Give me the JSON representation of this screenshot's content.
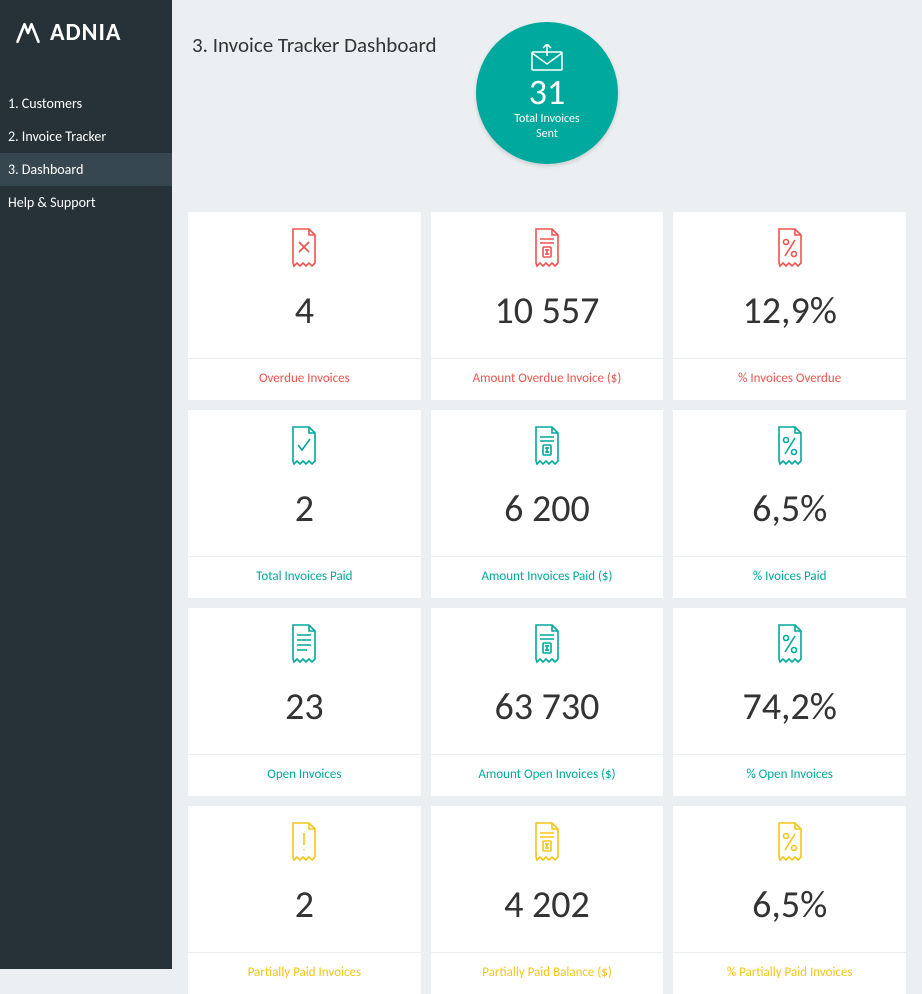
{
  "brand": "ADNIA",
  "nav": [
    {
      "label": "1. Customers",
      "active": false
    },
    {
      "label": "2. Invoice Tracker",
      "active": false
    },
    {
      "label": "3. Dashboard",
      "active": true
    },
    {
      "label": "Help & Support",
      "active": false
    }
  ],
  "page_title": "3. Invoice Tracker Dashboard",
  "hero": {
    "value": "31",
    "label_line1": "Total Invoices",
    "label_line2": "Sent",
    "bg_color": "#00a99d"
  },
  "colors": {
    "red": "#ef5350",
    "teal": "#00a99d",
    "yellow": "#f5c518",
    "card_bg": "#ffffff",
    "page_bg": "#eceff1",
    "sidebar_bg": "#263238",
    "sidebar_active_bg": "#37474f",
    "text_dark": "#333333"
  },
  "cards": [
    {
      "value": "4",
      "label": "Overdue Invoices",
      "color": "red",
      "icon": "doc-x"
    },
    {
      "value": "10 557",
      "label": "Amount Overdue Invoice ($)",
      "color": "red",
      "icon": "doc-dollar"
    },
    {
      "value": "12,9%",
      "label": "% Invoices Overdue",
      "color": "red",
      "icon": "doc-percent"
    },
    {
      "value": "2",
      "label": "Total Invoices Paid",
      "color": "teal",
      "icon": "doc-check"
    },
    {
      "value": "6 200",
      "label": "Amount Invoices Paid ($)",
      "color": "teal",
      "icon": "doc-dollar"
    },
    {
      "value": "6,5%",
      "label": "% Ivoices Paid",
      "color": "teal",
      "icon": "doc-percent"
    },
    {
      "value": "23",
      "label": "Open Invoices",
      "color": "teal",
      "icon": "doc-lines"
    },
    {
      "value": "63 730",
      "label": "Amount Open Invoices ($)",
      "color": "teal",
      "icon": "doc-dollar"
    },
    {
      "value": "74,2%",
      "label": "% Open Invoices",
      "color": "teal",
      "icon": "doc-percent"
    },
    {
      "value": "2",
      "label": "Partially Paid Invoices",
      "color": "yellow",
      "icon": "doc-bang"
    },
    {
      "value": "4 202",
      "label": "Partially Paid Balance ($)",
      "color": "yellow",
      "icon": "doc-dollar"
    },
    {
      "value": "6,5%",
      "label": "% Partially Paid Invoices",
      "color": "yellow",
      "icon": "doc-percent"
    }
  ]
}
